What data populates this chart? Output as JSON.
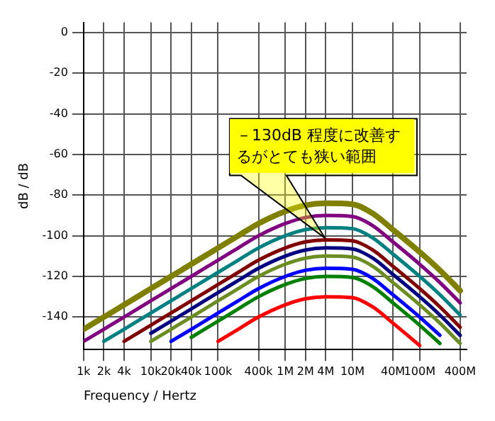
{
  "chart_data": {
    "type": "line",
    "xlabel": "Frequency / Hertz",
    "ylabel": "dB / dB",
    "log": "x",
    "grid": true,
    "legend": false,
    "marker": "none",
    "line_style": "solid",
    "x": [
      1000,
      2000,
      4000,
      10000,
      20000,
      40000,
      100000,
      200000,
      400000,
      1000000,
      2000000,
      4000000,
      10000000,
      20000000,
      40000000,
      100000000,
      200000000,
      400000000
    ],
    "xlim": [
      1000,
      500000000
    ],
    "ylim": [
      -156,
      5
    ],
    "xticks": [
      {
        "value": 1000,
        "label": "1k"
      },
      {
        "value": 2000,
        "label": "2k"
      },
      {
        "value": 4000,
        "label": "4k"
      },
      {
        "value": 10000,
        "label": "10k"
      },
      {
        "value": 20000,
        "label": "20k"
      },
      {
        "value": 40000,
        "label": "40k"
      },
      {
        "value": 100000,
        "label": "100k"
      },
      {
        "value": 400000,
        "label": "400k"
      },
      {
        "value": 1000000,
        "label": "1M"
      },
      {
        "value": 2000000,
        "label": "2M"
      },
      {
        "value": 4000000,
        "label": "4M"
      },
      {
        "value": 10000000,
        "label": "10M"
      },
      {
        "value": 40000000,
        "label": "40M"
      },
      {
        "value": 100000000,
        "label": "100M"
      },
      {
        "value": 400000000,
        "label": "400M"
      }
    ],
    "yticks": [
      0,
      -20,
      -40,
      -60,
      -80,
      -100,
      -120,
      -140
    ],
    "series": [
      {
        "color": "#808000",
        "values": [
          -146,
          -140,
          -134,
          -126,
          -120,
          -114,
          -106,
          -100,
          -94,
          -88,
          -85,
          -84,
          -84.5,
          -89,
          -97,
          -108,
          -117,
          -127
        ]
      },
      {
        "color": "#800080",
        "values": [
          -152,
          -146,
          -140,
          -132,
          -126,
          -120,
          -112,
          -106,
          -100,
          -94,
          -91,
          -90,
          -90.5,
          -95,
          -103,
          -114,
          -123,
          -133
        ]
      },
      {
        "color": "#008080",
        "values": [
          null,
          -152,
          -146,
          -138,
          -132,
          -126,
          -118,
          -112,
          -106,
          -100,
          -97,
          -96,
          -96.5,
          -101,
          -109,
          -120,
          -129,
          -139
        ]
      },
      {
        "color": "#800000",
        "values": [
          null,
          null,
          -152,
          -144,
          -138,
          -132,
          -124,
          -118,
          -112,
          -106,
          -103,
          -102,
          -102.5,
          -107,
          -115,
          -126,
          -135,
          -145
        ]
      },
      {
        "color": "#000080",
        "values": [
          null,
          null,
          null,
          -148,
          -142,
          -136,
          -128,
          -122,
          -116,
          -110,
          -107,
          -106,
          -106.5,
          -111,
          -119,
          -130,
          -139,
          -149
        ]
      },
      {
        "color": "#6b8e23",
        "values": [
          null,
          null,
          null,
          -152,
          -146,
          -140,
          -132,
          -126,
          -120,
          -114,
          -111,
          -110,
          -110.5,
          -115,
          -123,
          -134,
          -143,
          -153
        ]
      },
      {
        "color": "#0000ff",
        "values": [
          null,
          null,
          null,
          null,
          -152,
          -146,
          -138,
          -132,
          -126,
          -120,
          -117,
          -116,
          -116.5,
          -121,
          -129,
          -140,
          -149,
          null
        ]
      },
      {
        "color": "#008000",
        "values": [
          null,
          null,
          null,
          null,
          null,
          -150,
          -142,
          -136,
          -130,
          -124,
          -121,
          -120,
          -120.5,
          -125,
          -133,
          -144,
          -153,
          null
        ]
      },
      {
        "color": "#ff0000",
        "values": [
          null,
          null,
          null,
          null,
          null,
          null,
          -152,
          -146,
          -140,
          -134,
          -131,
          -130,
          -130.5,
          -135,
          -143,
          -154,
          null,
          null
        ]
      }
    ],
    "annotations": [
      "－130dB 程度に改善するがとても狭い範囲"
    ]
  }
}
